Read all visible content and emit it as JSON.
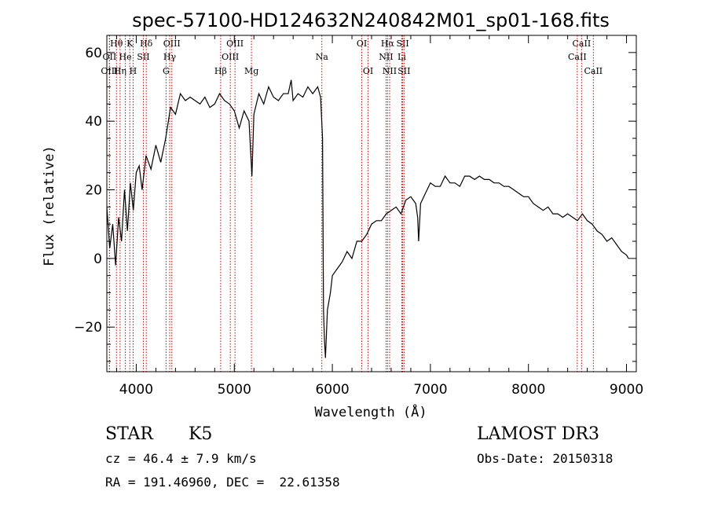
{
  "chart_data": {
    "type": "line",
    "title": "spec-57100-HD124632N240842M01_sp01-168.fits",
    "xlabel": "Wavelength (Å)",
    "ylabel": "Flux (relative)",
    "xlim": [
      3700,
      9100
    ],
    "ylim": [
      -33,
      65
    ],
    "xticks": [
      4000,
      5000,
      6000,
      7000,
      8000,
      9000
    ],
    "yticks": [
      -20,
      0,
      20,
      40,
      60
    ],
    "grid": false,
    "line_color": "#000000",
    "marker_color": "#cc0000",
    "series": [
      {
        "x": [
          3700,
          3730,
          3760,
          3790,
          3820,
          3850,
          3880,
          3910,
          3940,
          3970,
          4000,
          4030,
          4060,
          4100,
          4150,
          4200,
          4250,
          4300,
          4350,
          4400,
          4450,
          4500,
          4550,
          4600,
          4650,
          4700,
          4750,
          4800,
          4850,
          4900,
          4950,
          5000,
          5050,
          5100,
          5150,
          5180,
          5200,
          5250,
          5300,
          5350,
          5400,
          5450,
          5500,
          5550,
          5580,
          5600,
          5650,
          5700,
          5750,
          5800,
          5850,
          5880,
          5900,
          5910,
          5920,
          5930,
          5950,
          5980,
          6000,
          6050,
          6100,
          6150,
          6200,
          6250,
          6300,
          6350,
          6400,
          6450,
          6500,
          6550,
          6600,
          6650,
          6700,
          6750,
          6800,
          6850,
          6870,
          6880,
          6900,
          6950,
          7000,
          7050,
          7100,
          7150,
          7200,
          7250,
          7300,
          7350,
          7400,
          7450,
          7500,
          7550,
          7600,
          7650,
          7700,
          7750,
          7800,
          7850,
          7900,
          7950,
          8000,
          8050,
          8100,
          8150,
          8200,
          8250,
          8300,
          8350,
          8400,
          8450,
          8500,
          8550,
          8600,
          8650,
          8700,
          8750,
          8800,
          8850,
          8900,
          8950,
          9000,
          9020
        ],
        "y": [
          15,
          3,
          10,
          -2,
          12,
          5,
          20,
          8,
          22,
          14,
          25,
          27,
          20,
          30,
          26,
          33,
          28,
          35,
          44,
          42,
          48,
          46,
          47,
          46,
          45,
          47,
          44,
          45,
          48,
          46,
          45,
          43,
          38,
          43,
          40,
          24,
          42,
          48,
          45,
          50,
          47,
          46,
          48,
          48,
          52,
          46,
          48,
          47,
          50,
          48,
          50,
          47,
          35,
          -15,
          -24,
          -29,
          -15,
          -10,
          -5,
          -3,
          -1,
          2,
          0,
          5,
          5,
          7,
          10,
          11,
          11,
          13,
          14,
          15,
          13,
          17,
          18,
          16,
          12,
          5,
          16,
          19,
          22,
          21,
          21,
          24,
          22,
          22,
          21,
          24,
          24,
          23,
          24,
          23,
          23,
          22,
          22,
          21,
          21,
          20,
          19,
          18,
          18,
          16,
          15,
          14,
          15,
          13,
          13,
          12,
          13,
          12,
          11,
          13,
          11,
          10,
          8,
          7,
          5,
          6,
          4,
          2,
          1,
          0
        ]
      }
    ],
    "line_markers": [
      {
        "name": "Hθ",
        "x": 3798,
        "row": 1
      },
      {
        "name": "OII",
        "x": 3727,
        "row": 2
      },
      {
        "name": "OIII",
        "x": 3727,
        "row": 3
      },
      {
        "name": "Hη",
        "x": 3835,
        "row": 3
      },
      {
        "name": "K",
        "x": 3934,
        "row": 1
      },
      {
        "name": "He",
        "x": 3889,
        "row": 2
      },
      {
        "name": "H",
        "x": 3968,
        "row": 3
      },
      {
        "name": "Hδ",
        "x": 4102,
        "row": 1
      },
      {
        "name": "SII",
        "x": 4072,
        "row": 2
      },
      {
        "name": "OIII",
        "x": 4363,
        "row": 1
      },
      {
        "name": "Hγ",
        "x": 4341,
        "row": 2
      },
      {
        "name": "G",
        "x": 4304,
        "row": 3
      },
      {
        "name": "Hβ",
        "x": 4861,
        "row": 3
      },
      {
        "name": "OIII",
        "x": 5007,
        "row": 1
      },
      {
        "name": "OIII",
        "x": 4959,
        "row": 2
      },
      {
        "name": "Mg",
        "x": 5175,
        "row": 3
      },
      {
        "name": "Na",
        "x": 5893,
        "row": 2
      },
      {
        "name": "OI",
        "x": 6300,
        "row": 1
      },
      {
        "name": "OI",
        "x": 6364,
        "row": 3
      },
      {
        "name": "Hα",
        "x": 6563,
        "row": 1
      },
      {
        "name": "NII",
        "x": 6548,
        "row": 2
      },
      {
        "name": "NII",
        "x": 6584,
        "row": 3
      },
      {
        "name": "SII",
        "x": 6717,
        "row": 1
      },
      {
        "name": "Li",
        "x": 6708,
        "row": 2
      },
      {
        "name": "SII",
        "x": 6731,
        "row": 3
      },
      {
        "name": "CaII",
        "x": 8542,
        "row": 1
      },
      {
        "name": "CaII",
        "x": 8498,
        "row": 2
      },
      {
        "name": "CaII",
        "x": 8662,
        "row": 3
      }
    ]
  },
  "info": {
    "object_class": "STAR",
    "subclass": "K5",
    "survey": "LAMOST DR3",
    "redshift": "cz = 46.4 ± 7.9 km/s",
    "obs_date": "Obs-Date: 20150318",
    "coords": "RA = 191.46960, DEC =  22.61358"
  }
}
